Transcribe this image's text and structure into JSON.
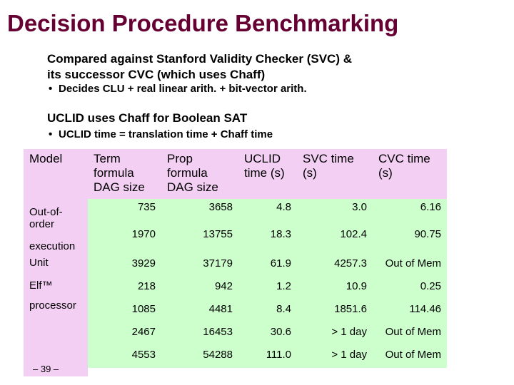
{
  "title": "Decision Procedure Benchmarking",
  "intro": {
    "line1": "Compared against Stanford Validity Checker (SVC) &",
    "line2": "its successor CVC (which uses Chaff)",
    "bullet1": "Decides CLU + real linear arith. + bit-vector arith."
  },
  "uclid": {
    "line": "UCLID uses Chaff for Boolean SAT",
    "bullet": "UCLID time = translation time + Chaff time"
  },
  "bullet_glyph": "•",
  "table": {
    "headers": [
      "Model",
      "Term formula DAG size",
      "Prop formula DAG size",
      "UCLID time (s)",
      "SVC time (s)",
      "CVC time (s)"
    ],
    "model_labels": [
      "Out-of-order",
      "execution",
      "Unit",
      "Elf™",
      "processor"
    ],
    "rows": [
      [
        "735",
        "3658",
        "4.8",
        "3.0",
        "6.16"
      ],
      [
        "1970",
        "13755",
        "18.3",
        "102.4",
        "90.75"
      ],
      [
        "3929",
        "37179",
        "61.9",
        "4257.3",
        "Out of Mem"
      ],
      [
        "218",
        "942",
        "1.2",
        "10.9",
        "0.25"
      ],
      [
        "1085",
        "4481",
        "8.4",
        "1851.6",
        "114.46"
      ],
      [
        "2467",
        "16453",
        "30.6",
        "> 1 day",
        "Out of Mem"
      ],
      [
        "4553",
        "54288",
        "111.0",
        "> 1 day",
        "Out of Mem"
      ]
    ]
  },
  "footer": "– 39 –",
  "colors": {
    "title": "#660033",
    "header_bg": "#f3cff3",
    "cell_bg": "#ccffcc"
  }
}
